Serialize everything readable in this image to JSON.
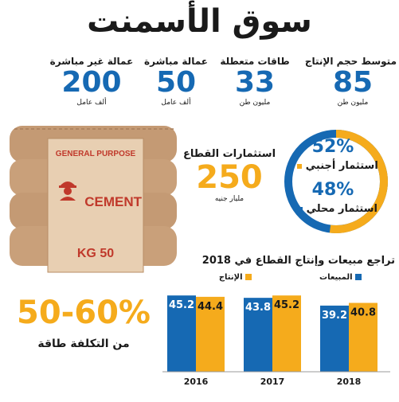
{
  "title": "سوق الأسمنت",
  "stats": [
    {
      "label": "متوسط حجم الإنتاج",
      "value": "85",
      "unit": "مليون طن"
    },
    {
      "label": "طاقات متعطلة",
      "value": "33",
      "unit": "مليون طن"
    },
    {
      "label": "عمالة مباشرة",
      "value": "50",
      "unit": "ألف عامل"
    },
    {
      "label": "عمالة غير مباشرة",
      "value": "200",
      "unit": "ألف عامل"
    }
  ],
  "investment": {
    "label": "استثمارات القطاع",
    "value": "250",
    "unit": "مليار جنيه"
  },
  "donut": {
    "foreign": {
      "pct": "52%",
      "label": "استثمار أجنبي",
      "value": 52
    },
    "local": {
      "pct": "48%",
      "label": "استثمار محلي",
      "value": 48
    },
    "colors": {
      "foreign": "#f5ab1c",
      "local": "#1669b3"
    }
  },
  "bag": {
    "brand": "GENERAL PURPOSE",
    "name": "CEMENT",
    "weight": "50 KG"
  },
  "cost": {
    "value": "50-60%",
    "label": "من التكلفة طاقة"
  },
  "chart_data": {
    "type": "bar",
    "title": "تراجع مبيعات وإنتاج القطاع في 2018",
    "categories": [
      "2016",
      "2017",
      "2018"
    ],
    "series": [
      {
        "name": "المبيعات",
        "values": [
          45.2,
          43.8,
          39.2
        ],
        "color": "#1669b3"
      },
      {
        "name": "الإنتاج",
        "values": [
          44.4,
          45.2,
          40.8
        ],
        "color": "#f5ab1c"
      }
    ],
    "ylim": [
      0,
      50
    ],
    "legend": "top-right"
  }
}
